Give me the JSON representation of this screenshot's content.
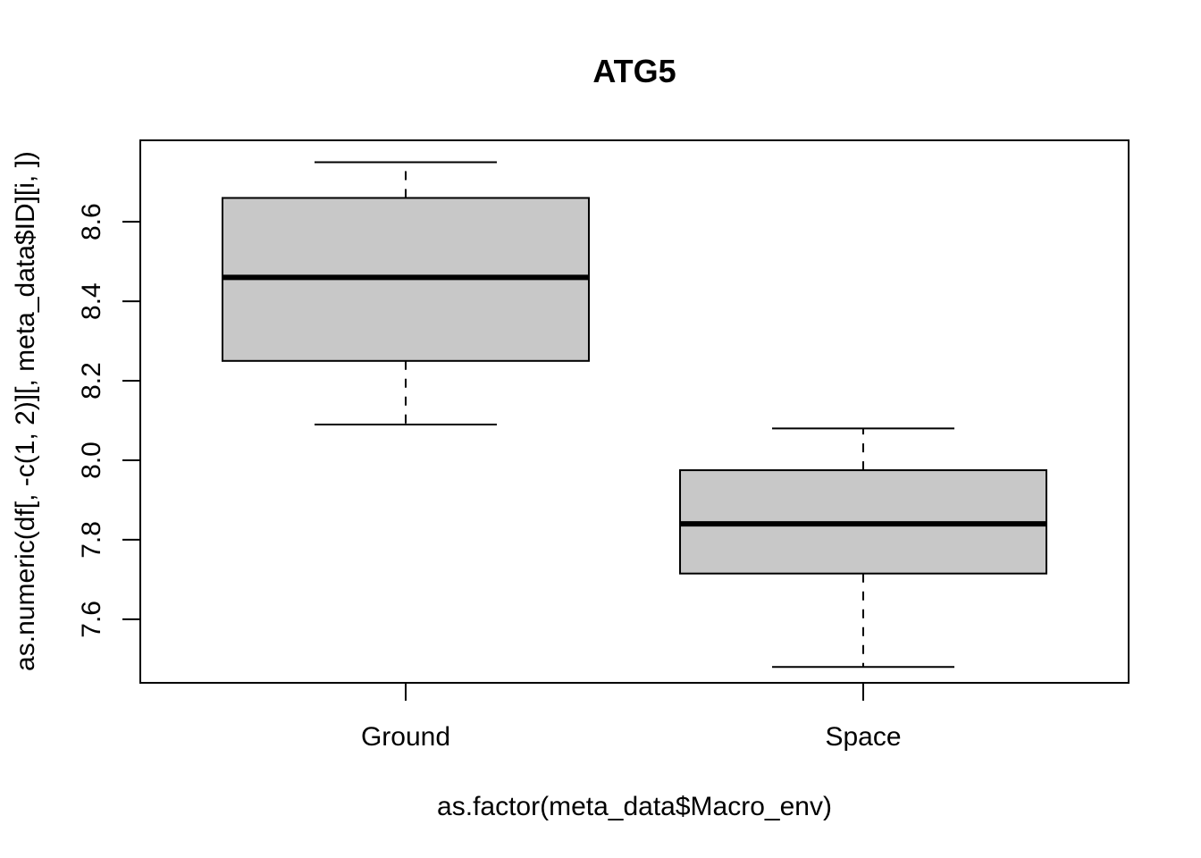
{
  "chart_data": {
    "type": "boxplot",
    "title": "ATG5",
    "xlabel": "as.factor(meta_data$Macro_env)",
    "ylabel": "as.numeric(df[, -c(1, 2)][, meta_data$ID][i, ])",
    "categories": [
      "Ground",
      "Space"
    ],
    "boxes": [
      {
        "category": "Ground",
        "whisker_low": 8.09,
        "q1": 8.25,
        "median": 8.46,
        "q3": 8.66,
        "whisker_high": 8.75
      },
      {
        "category": "Space",
        "whisker_low": 7.48,
        "q1": 7.715,
        "median": 7.84,
        "q3": 7.975,
        "whisker_high": 8.08
      }
    ],
    "yticks": [
      "7.6",
      "7.8",
      "8.0",
      "8.2",
      "8.4",
      "8.6"
    ],
    "ylim": [
      7.44,
      8.805
    ],
    "grid": false,
    "legend": "none",
    "box_fill": "#c8c8c8",
    "line_color": "#000000"
  }
}
